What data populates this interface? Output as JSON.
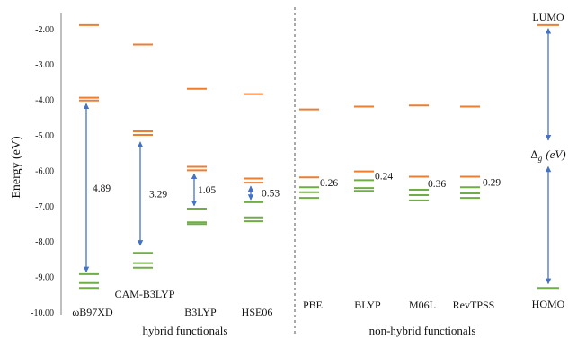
{
  "chart_data": {
    "type": "energy-level diagram",
    "ylabel": "Energy (eV)",
    "ylim": [
      -10.0,
      -1.6
    ],
    "yticks": [
      "-2.00",
      "-3.00",
      "-4.00",
      "-5.00",
      "-6.00",
      "-7.00",
      "-8.00",
      "-9.00",
      "-10.00"
    ],
    "groups": [
      {
        "label": "hybrid functionals"
      },
      {
        "label": "non-hybrid functionals"
      }
    ],
    "colors": {
      "unoccupied": "#ED7D31",
      "occupied": "#70AD47",
      "arrow": "#4472C4",
      "axis": "#7f7f7f"
    },
    "series": [
      {
        "name": "ωB97XD",
        "unoccupied": [
          -1.9,
          -3.95,
          -4.03
        ],
        "occupied": [
          -8.93,
          -9.18,
          -9.32
        ],
        "gap": "4.89",
        "gap_from": -4.12,
        "gap_to": -8.87
      },
      {
        "name": "CAM-B3LYP",
        "unoccupied": [
          -2.45,
          -4.9,
          -5.0
        ],
        "occupied": [
          -8.33,
          -8.62,
          -8.75
        ],
        "gap": "3.29",
        "gap_from": -5.2,
        "gap_to": -8.12
      },
      {
        "name": "B3LYP",
        "unoccupied": [
          -3.7,
          -5.9,
          -6.0
        ],
        "occupied": [
          -7.08,
          -7.47,
          -7.52
        ],
        "gap": "1.05",
        "gap_from": -6.1,
        "gap_to": -7.0
      },
      {
        "name": "HSE06",
        "unoccupied": [
          -3.85,
          -6.23,
          -6.35
        ],
        "occupied": [
          -6.9,
          -7.33,
          -7.44
        ],
        "gap": "0.53",
        "gap_from": -6.45,
        "gap_to": -6.83
      },
      {
        "name": "PBE",
        "unoccupied": [
          -4.28,
          -6.2
        ],
        "occupied": [
          -6.48,
          -6.62,
          -6.78
        ],
        "gap": "0.26"
      },
      {
        "name": "BLYP",
        "unoccupied": [
          -4.2,
          -6.03
        ],
        "occupied": [
          -6.28,
          -6.5,
          -6.58
        ],
        "gap": "0.24"
      },
      {
        "name": "M06L",
        "unoccupied": [
          -4.17,
          -6.18
        ],
        "occupied": [
          -6.55,
          -6.7,
          -6.85
        ],
        "gap": "0.36"
      },
      {
        "name": "RevTPSS",
        "unoccupied": [
          -4.2,
          -6.18
        ],
        "occupied": [
          -6.48,
          -6.65,
          -6.78
        ],
        "gap": "0.29"
      }
    ],
    "legend": {
      "lumo_label": "LUMO",
      "homo_label": "HOMO",
      "gap_symbol": "Δ",
      "gap_subscript": "g",
      "gap_unit": "(eV)",
      "lumo_level": -1.9,
      "homo_level": -9.32,
      "arrow_top": -2.0,
      "arrow_mid_top": -5.15,
      "arrow_mid_bottom": -5.9,
      "arrow_bottom": -9.2
    }
  }
}
